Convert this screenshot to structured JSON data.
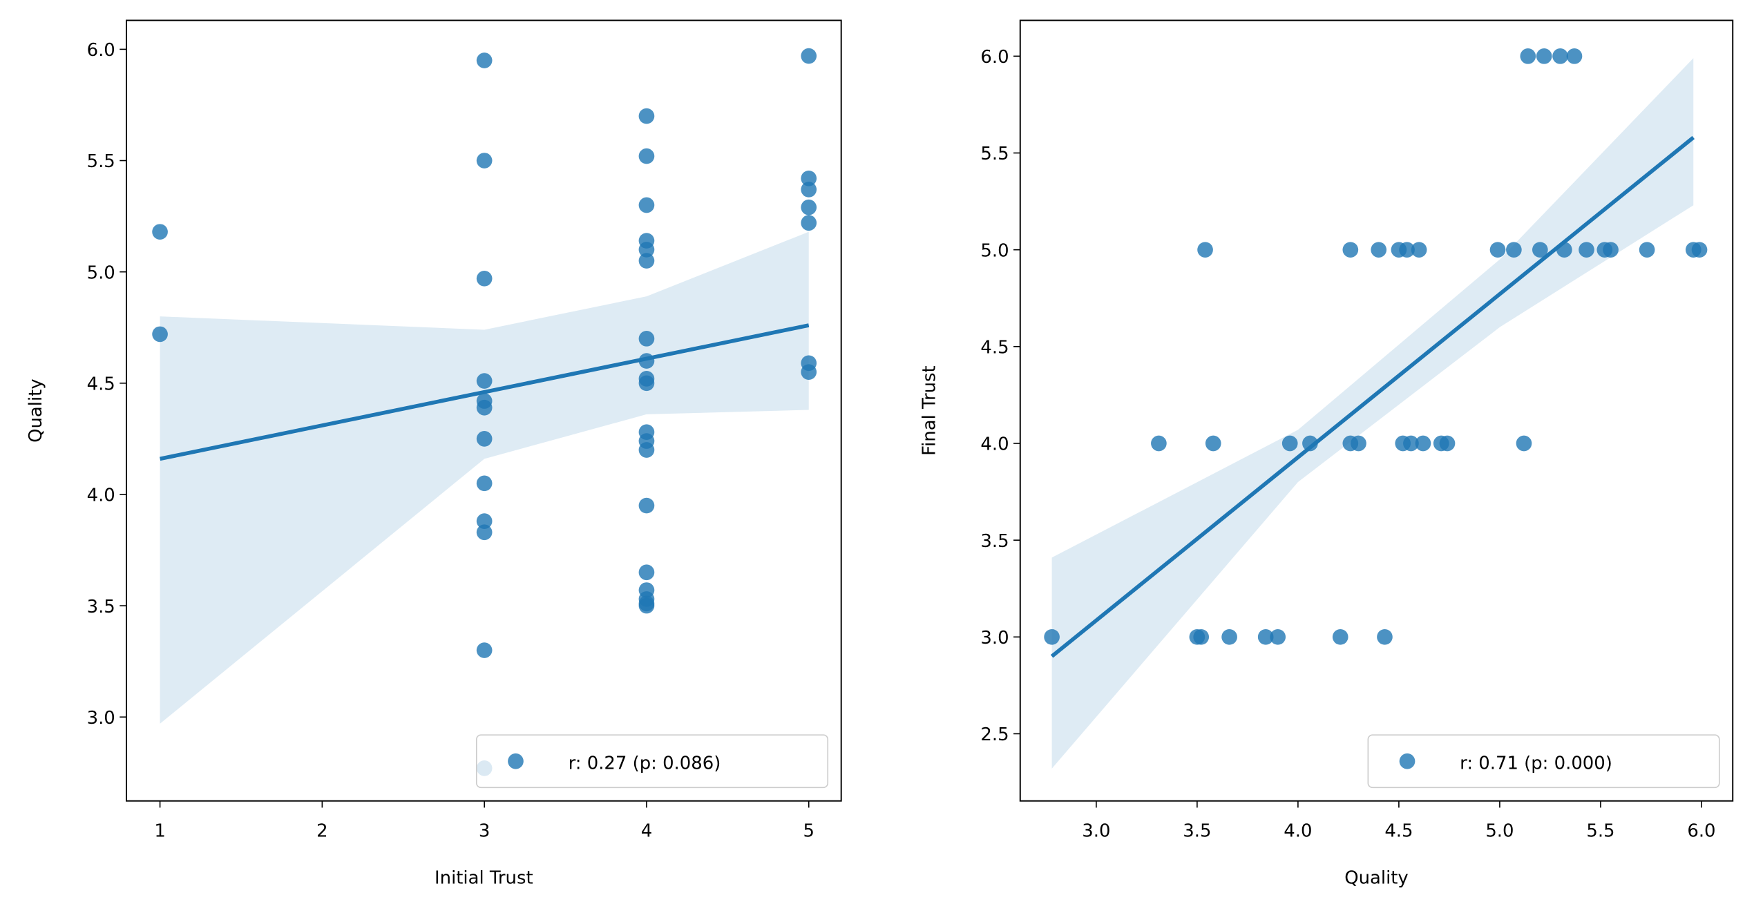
{
  "chart_data": [
    {
      "type": "scatter",
      "xlabel": "Initial Trust",
      "ylabel": "Quality",
      "xlim": [
        0.793,
        5.2
      ],
      "ylim": [
        2.623,
        6.13
      ],
      "xticks": [
        1,
        2,
        3,
        4,
        5
      ],
      "yticks": [
        {
          "value": 3,
          "label": "3.0"
        },
        {
          "value": 3.5,
          "label": "3.5"
        },
        {
          "value": 4,
          "label": "4.0"
        },
        {
          "value": 4.5,
          "label": "4.5"
        },
        {
          "value": 5,
          "label": "5.0"
        },
        {
          "value": 5.5,
          "label": "5.5"
        },
        {
          "value": 6,
          "label": "6.0"
        }
      ],
      "legend": "lower right",
      "series": [
        {
          "name": "r: 0.27 (p: 0.086)",
          "color": "#1f77b4",
          "x": [
            1,
            1,
            3,
            3,
            3,
            3,
            3,
            3,
            3,
            3,
            3,
            3,
            3,
            3,
            4,
            4,
            4,
            4,
            4,
            4,
            4,
            4,
            4,
            4,
            4,
            4,
            4,
            4,
            4,
            4,
            4,
            4,
            4,
            5,
            5,
            5,
            5,
            5,
            5,
            5
          ],
          "values": [
            5.18,
            4.72,
            5.95,
            5.5,
            4.97,
            4.51,
            4.42,
            4.39,
            4.25,
            4.05,
            3.88,
            3.83,
            3.3,
            2.77,
            5.7,
            5.52,
            5.3,
            5.14,
            5.1,
            5.05,
            4.7,
            4.6,
            4.52,
            4.5,
            4.28,
            4.24,
            4.2,
            3.95,
            3.65,
            3.57,
            3.53,
            3.51,
            3.5,
            5.97,
            5.42,
            5.37,
            5.29,
            5.22,
            4.59,
            4.55
          ]
        }
      ],
      "fit": {
        "x": [
          1,
          5
        ],
        "values": [
          4.16,
          4.76
        ]
      },
      "band": {
        "x": [
          1,
          3,
          4,
          5
        ],
        "upper": [
          4.8,
          4.74,
          4.89,
          5.18
        ],
        "lower": [
          2.97,
          4.16,
          4.36,
          4.38
        ]
      }
    },
    {
      "type": "scatter",
      "xlabel": "Quality",
      "ylabel": "Final Trust",
      "xlim": [
        2.623,
        6.155
      ],
      "ylim": [
        2.153,
        6.185
      ],
      "xticks": [
        {
          "value": 3,
          "label": "3.0"
        },
        {
          "value": 3.5,
          "label": "3.5"
        },
        {
          "value": 4,
          "label": "4.0"
        },
        {
          "value": 4.5,
          "label": "4.5"
        },
        {
          "value": 5,
          "label": "5.0"
        },
        {
          "value": 5.5,
          "label": "5.5"
        },
        {
          "value": 6,
          "label": "6.0"
        }
      ],
      "yticks": [
        {
          "value": 2.5,
          "label": "2.5"
        },
        {
          "value": 3,
          "label": "3.0"
        },
        {
          "value": 3.5,
          "label": "3.5"
        },
        {
          "value": 4,
          "label": "4.0"
        },
        {
          "value": 4.5,
          "label": "4.5"
        },
        {
          "value": 5,
          "label": "5.0"
        },
        {
          "value": 5.5,
          "label": "5.5"
        },
        {
          "value": 6,
          "label": "6.0"
        }
      ],
      "legend": "lower right",
      "series": [
        {
          "name": "r: 0.71 (p: 0.000)",
          "color": "#1f77b4",
          "x": [
            5.14,
            5.22,
            5.3,
            5.37,
            3.54,
            4.26,
            4.4,
            4.5,
            4.54,
            4.6,
            4.99,
            5.07,
            5.2,
            5.32,
            5.43,
            5.52,
            5.55,
            5.73,
            5.96,
            5.99,
            3.31,
            3.58,
            3.96,
            4.06,
            4.26,
            4.3,
            4.52,
            4.56,
            4.62,
            4.71,
            4.74,
            5.12,
            2.78,
            3.5,
            3.52,
            3.66,
            3.84,
            3.9,
            4.21,
            4.43
          ],
          "values": [
            6,
            6,
            6,
            6,
            5,
            5,
            5,
            5,
            5,
            5,
            5,
            5,
            5,
            5,
            5,
            5,
            5,
            5,
            5,
            5,
            4,
            4,
            4,
            4,
            4,
            4,
            4,
            4,
            4,
            4,
            4,
            4,
            3,
            3,
            3,
            3,
            3,
            3,
            3,
            3
          ]
        }
      ],
      "fit": {
        "x": [
          2.78,
          5.96
        ],
        "values": [
          2.9,
          5.58
        ]
      },
      "band": {
        "x": [
          2.78,
          4,
          5,
          5.96
        ],
        "upper": [
          3.41,
          4.07,
          4.95,
          5.99
        ],
        "lower": [
          2.32,
          3.8,
          4.6,
          5.23
        ]
      }
    }
  ]
}
